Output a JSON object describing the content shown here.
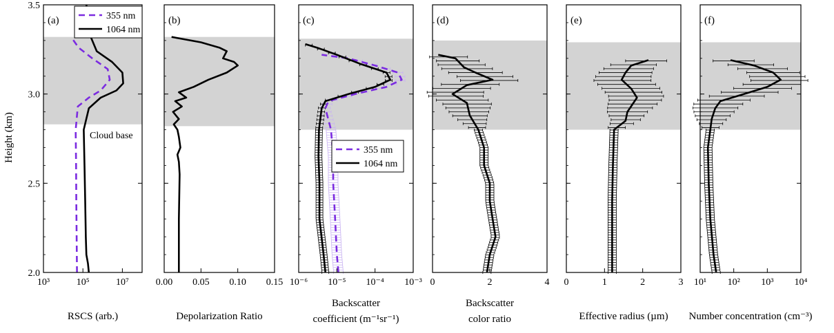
{
  "figure": {
    "ylabel": "Height (km)",
    "y_ticks": [
      "2.0",
      "2.5",
      "3.0",
      "3.5"
    ],
    "cloud_base_label": "Cloud base",
    "colors": {
      "violet": "#7b2be0",
      "black": "#000000",
      "shade": "#d3d3d3",
      "violet_band": "#c9b3f2"
    }
  },
  "chart_data": [
    {
      "id": "a",
      "type": "line",
      "panel_label": "(a)",
      "xlabel": "RSCS (arb.)",
      "xscale": "log",
      "xlim": [
        1000,
        100000000.0
      ],
      "ylim": [
        2.0,
        3.5
      ],
      "x_ticks": [
        "10³",
        "10⁵",
        "10⁷"
      ],
      "shaded_y": [
        2.83,
        3.32
      ],
      "legend": {
        "position": "top-right",
        "entries": [
          "355 nm",
          "1064 nm"
        ]
      },
      "series": [
        {
          "name": "355 nm",
          "style": "dashed",
          "color": "violet",
          "points": [
            [
              50000.0,
              2.0
            ],
            [
              48000.0,
              2.2
            ],
            [
              46000.0,
              2.4
            ],
            [
              45000.0,
              2.6
            ],
            [
              43000.0,
              2.8
            ],
            [
              55000.0,
              2.93
            ],
            [
              200000.0,
              2.98
            ],
            [
              800000.0,
              3.02
            ],
            [
              2300000.0,
              3.08
            ],
            [
              1800000.0,
              3.14
            ],
            [
              300000.0,
              3.2
            ],
            [
              60000.0,
              3.26
            ],
            [
              25000.0,
              3.32
            ]
          ]
        },
        {
          "name": "1064 nm",
          "style": "solid",
          "color": "black",
          "points": [
            [
              200000.0,
              2.0
            ],
            [
              180000.0,
              2.05
            ],
            [
              150000.0,
              2.1
            ],
            [
              140000.0,
              2.2
            ],
            [
              130000.0,
              2.4
            ],
            [
              120000.0,
              2.6
            ],
            [
              110000.0,
              2.8
            ],
            [
              200000.0,
              2.92
            ],
            [
              800000.0,
              2.98
            ],
            [
              5000000.0,
              3.02
            ],
            [
              11000000.0,
              3.06
            ],
            [
              10000000.0,
              3.12
            ],
            [
              3000000.0,
              3.18
            ],
            [
              500000.0,
              3.24
            ],
            [
              250000.0,
              3.32
            ],
            [
              200000.0,
              3.4
            ],
            [
              150000.0,
              3.5
            ]
          ]
        }
      ]
    },
    {
      "id": "b",
      "type": "line",
      "panel_label": "(b)",
      "xlabel": "Depolarization Ratio",
      "xlim": [
        0,
        0.15
      ],
      "ylim": [
        2.0,
        3.5
      ],
      "x_ticks": [
        "0.00",
        "0.05",
        "0.10",
        "0.15"
      ],
      "shaded_y": [
        2.82,
        3.32
      ],
      "series": [
        {
          "name": "",
          "style": "solid",
          "color": "black",
          "points": [
            [
              0.02,
              2.0
            ],
            [
              0.02,
              2.3
            ],
            [
              0.021,
              2.55
            ],
            [
              0.02,
              2.62
            ],
            [
              0.018,
              2.66
            ],
            [
              0.022,
              2.7
            ],
            [
              0.02,
              2.76
            ],
            [
              0.018,
              2.8
            ],
            [
              0.013,
              2.83
            ],
            [
              0.02,
              2.86
            ],
            [
              0.012,
              2.9
            ],
            [
              0.024,
              2.93
            ],
            [
              0.015,
              2.96
            ],
            [
              0.03,
              2.98
            ],
            [
              0.02,
              3.01
            ],
            [
              0.04,
              3.04
            ],
            [
              0.06,
              3.08
            ],
            [
              0.085,
              3.12
            ],
            [
              0.1,
              3.16
            ],
            [
              0.095,
              3.18
            ],
            [
              0.08,
              3.2
            ],
            [
              0.085,
              3.24
            ],
            [
              0.075,
              3.26
            ],
            [
              0.05,
              3.29
            ],
            [
              0.01,
              3.32
            ]
          ]
        }
      ]
    },
    {
      "id": "c",
      "type": "line",
      "panel_label": "(c)",
      "xlabel": "Backscatter",
      "xlabel2": "coefficient (m⁻¹sr⁻¹)",
      "xscale": "log",
      "xlim": [
        1e-06,
        0.001
      ],
      "ylim": [
        2.0,
        3.5
      ],
      "x_ticks": [
        "10⁻⁶",
        "10⁻⁵",
        "10⁻⁴",
        "10⁻³"
      ],
      "shaded_y": [
        2.8,
        3.31
      ],
      "legend": {
        "position": "center",
        "entries": [
          "355 nm",
          "1064 nm"
        ]
      },
      "series": [
        {
          "name": "355 nm",
          "style": "dashed",
          "color": "violet",
          "points": [
            [
              1.1e-05,
              2.0
            ],
            [
              1e-05,
              2.1
            ],
            [
              9e-06,
              2.3
            ],
            [
              8e-06,
              2.5
            ],
            [
              8e-06,
              2.65
            ],
            [
              7e-06,
              2.8
            ],
            [
              5e-06,
              2.92
            ],
            [
              6e-06,
              2.96
            ],
            [
              3e-05,
              3.0
            ],
            [
              0.0002,
              3.04
            ],
            [
              0.0005,
              3.08
            ],
            [
              0.0004,
              3.12
            ],
            [
              0.0001,
              3.16
            ],
            [
              2e-05,
              3.2
            ],
            [
              4e-06,
              3.22
            ]
          ]
        },
        {
          "name": "1064 nm",
          "style": "solid",
          "color": "black",
          "points": [
            [
              5e-06,
              2.0
            ],
            [
              4.5e-06,
              2.1
            ],
            [
              3.5e-06,
              2.3
            ],
            [
              3.5e-06,
              2.5
            ],
            [
              3.3e-06,
              2.65
            ],
            [
              3.4e-06,
              2.8
            ],
            [
              4e-06,
              2.92
            ],
            [
              5e-06,
              2.96
            ],
            [
              2e-05,
              3.0
            ],
            [
              0.0001,
              3.04
            ],
            [
              0.00025,
              3.08
            ],
            [
              0.0002,
              3.12
            ],
            [
              4e-05,
              3.17
            ],
            [
              1e-05,
              3.22
            ],
            [
              3e-06,
              3.26
            ],
            [
              1.5e-06,
              3.28
            ]
          ]
        }
      ]
    },
    {
      "id": "d",
      "type": "line",
      "panel_label": "(d)",
      "xlabel": "Backscatter",
      "xlabel2": "color ratio",
      "xlim": [
        0,
        4
      ],
      "ylim": [
        2.0,
        3.5
      ],
      "x_ticks": [
        "0",
        "2",
        "4"
      ],
      "shaded_y": [
        2.8,
        3.3
      ],
      "series": [
        {
          "name": "",
          "style": "solid",
          "color": "black",
          "points": [
            [
              1.9,
              2.0
            ],
            [
              2.0,
              2.1
            ],
            [
              2.2,
              2.2
            ],
            [
              2.1,
              2.3
            ],
            [
              2.0,
              2.4
            ],
            [
              2.0,
              2.5
            ],
            [
              1.8,
              2.6
            ],
            [
              1.8,
              2.7
            ],
            [
              1.6,
              2.8
            ],
            [
              1.3,
              2.88
            ],
            [
              1.2,
              2.95
            ],
            [
              0.7,
              3.0
            ],
            [
              1.2,
              3.05
            ],
            [
              2.1,
              3.08
            ],
            [
              1.5,
              3.12
            ],
            [
              1.1,
              3.15
            ],
            [
              0.8,
              3.2
            ],
            [
              0.2,
              3.22
            ]
          ]
        }
      ]
    },
    {
      "id": "e",
      "type": "line",
      "panel_label": "(e)",
      "xlabel": "Effective radius (µm)",
      "xlim": [
        0,
        3
      ],
      "ylim": [
        2.0,
        3.5
      ],
      "x_ticks": [
        "0",
        "1",
        "2",
        "3"
      ],
      "shaded_y": [
        2.8,
        3.29
      ],
      "series": [
        {
          "name": "",
          "style": "solid",
          "color": "black",
          "points": [
            [
              1.2,
              2.0
            ],
            [
              1.2,
              2.2
            ],
            [
              1.2,
              2.4
            ],
            [
              1.22,
              2.6
            ],
            [
              1.25,
              2.8
            ],
            [
              1.55,
              2.85
            ],
            [
              1.6,
              2.9
            ],
            [
              1.85,
              2.98
            ],
            [
              1.7,
              3.03
            ],
            [
              1.45,
              3.08
            ],
            [
              1.55,
              3.12
            ],
            [
              1.7,
              3.16
            ],
            [
              2.15,
              3.19
            ]
          ]
        }
      ]
    },
    {
      "id": "f",
      "type": "line",
      "panel_label": "(f)",
      "xlabel": "Number concentration (cm⁻³)",
      "xscale": "log",
      "xlim": [
        10,
        10000
      ],
      "ylim": [
        2.0,
        3.5
      ],
      "x_ticks": [
        "10¹",
        "10²",
        "10³",
        "10⁴"
      ],
      "shaded_y": [
        2.8,
        3.29
      ],
      "series": [
        {
          "name": "",
          "style": "solid",
          "color": "black",
          "points": [
            [
              30,
              2.0
            ],
            [
              25,
              2.1
            ],
            [
              20,
              2.3
            ],
            [
              18,
              2.5
            ],
            [
              17,
              2.7
            ],
            [
              20,
              2.8
            ],
            [
              22,
              2.86
            ],
            [
              28,
              2.92
            ],
            [
              40,
              2.96
            ],
            [
              200,
              3.0
            ],
            [
              1000,
              3.04
            ],
            [
              2500,
              3.08
            ],
            [
              1500,
              3.12
            ],
            [
              400,
              3.16
            ],
            [
              80,
              3.19
            ]
          ]
        }
      ]
    }
  ]
}
